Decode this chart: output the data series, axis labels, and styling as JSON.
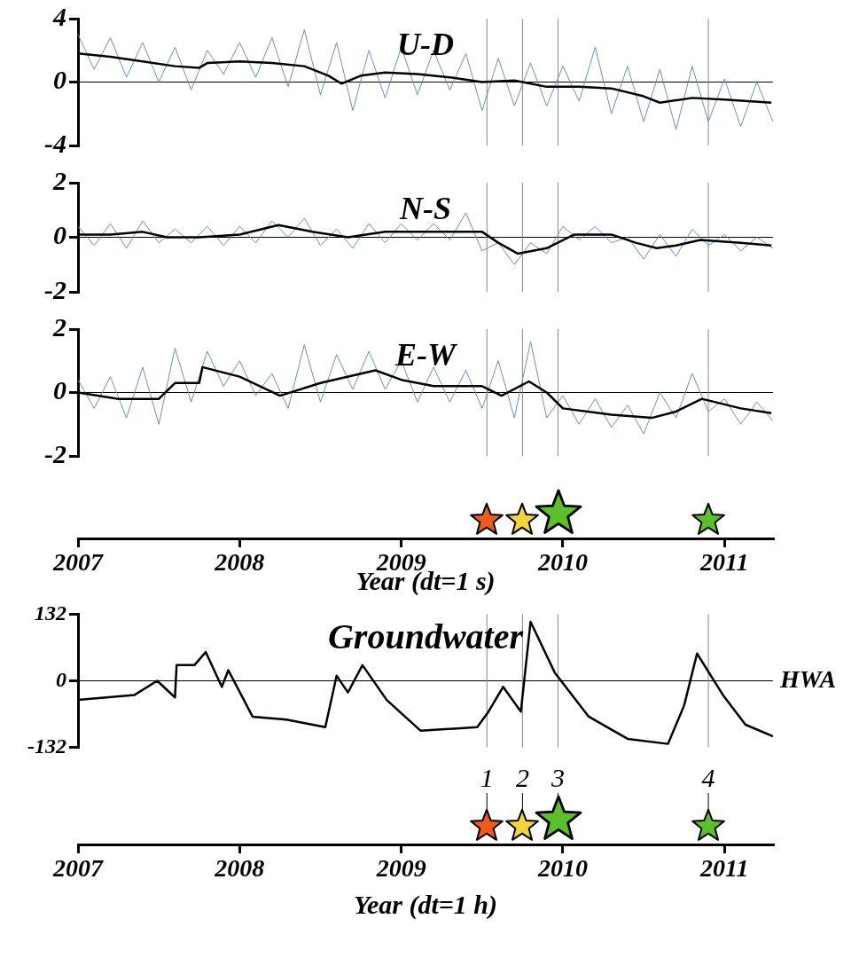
{
  "chart_data": [
    {
      "type": "line",
      "title": "U-D",
      "xlim": [
        2007,
        2011.3
      ],
      "ylim": [
        -4,
        4
      ],
      "yticks": [
        4,
        0,
        -4
      ],
      "tick_labels": "y",
      "grid": false,
      "legend": false,
      "marker": "none",
      "line_style": "solid",
      "series": [
        {
          "color": "#6b8fb8",
          "x": [
            2007.0,
            2007.1,
            2007.2,
            2007.3,
            2007.4,
            2007.5,
            2007.6,
            2007.7,
            2007.8,
            2007.9,
            2008.0,
            2008.1,
            2008.2,
            2008.3,
            2008.4,
            2008.5,
            2008.6,
            2008.7,
            2008.8,
            2008.9,
            2009.0,
            2009.1,
            2009.2,
            2009.3,
            2009.4,
            2009.5,
            2009.6,
            2009.7,
            2009.8,
            2009.9,
            2010.0,
            2010.1,
            2010.2,
            2010.3,
            2010.4,
            2010.5,
            2010.6,
            2010.7,
            2010.8,
            2010.9,
            2011.0,
            2011.1,
            2011.2,
            2011.3
          ],
          "values": [
            3.0,
            0.8,
            2.8,
            0.3,
            2.5,
            0.0,
            2.2,
            -0.5,
            2.0,
            0.5,
            2.5,
            0.3,
            2.8,
            -0.3,
            3.3,
            -0.8,
            2.5,
            -1.8,
            2.0,
            -1.0,
            2.2,
            -0.8,
            2.0,
            -0.5,
            1.8,
            -1.8,
            1.5,
            -1.5,
            1.2,
            -1.5,
            1.0,
            -1.2,
            2.2,
            -2.0,
            1.0,
            -2.5,
            0.8,
            -3.0,
            1.0,
            -2.5,
            0.2,
            -2.8,
            0.0,
            -2.5
          ]
        },
        {
          "color": "#000000",
          "x": [
            2007.0,
            2007.2,
            2007.4,
            2007.6,
            2007.75,
            2007.8,
            2008.0,
            2008.2,
            2008.4,
            2008.55,
            2008.63,
            2008.75,
            2008.9,
            2009.1,
            2009.3,
            2009.5,
            2009.7,
            2009.9,
            2010.1,
            2010.3,
            2010.5,
            2010.6,
            2010.8,
            2011.0,
            2011.29
          ],
          "values": [
            1.8,
            1.6,
            1.3,
            1.0,
            0.9,
            1.2,
            1.3,
            1.2,
            1.0,
            0.4,
            -0.1,
            0.4,
            0.6,
            0.5,
            0.3,
            0.0,
            0.1,
            -0.3,
            -0.3,
            -0.4,
            -0.9,
            -1.3,
            -1.0,
            -1.1,
            -1.3
          ]
        }
      ],
      "ref_lines": [
        {
          "axis": "y",
          "value": 0,
          "color": "#000000"
        },
        {
          "axis": "x",
          "value": 2009.53,
          "color": "#888888"
        },
        {
          "axis": "x",
          "value": 2009.75,
          "color": "#888888"
        },
        {
          "axis": "x",
          "value": 2009.97,
          "color": "#888888"
        },
        {
          "axis": "x",
          "value": 2010.9,
          "color": "#888888"
        }
      ]
    },
    {
      "type": "line",
      "title": "N-S",
      "xlim": [
        2007,
        2011.3
      ],
      "ylim": [
        -2,
        2
      ],
      "yticks": [
        2,
        0,
        -2
      ],
      "tick_labels": "y",
      "grid": false,
      "legend": false,
      "marker": "none",
      "line_style": "solid",
      "series": [
        {
          "color": "#6b8fb8",
          "x": [
            2007.0,
            2007.1,
            2007.2,
            2007.3,
            2007.4,
            2007.5,
            2007.6,
            2007.7,
            2007.8,
            2007.9,
            2008.0,
            2008.1,
            2008.2,
            2008.3,
            2008.4,
            2008.5,
            2008.6,
            2008.7,
            2008.8,
            2008.9,
            2009.0,
            2009.1,
            2009.2,
            2009.3,
            2009.4,
            2009.5,
            2009.6,
            2009.7,
            2009.8,
            2009.9,
            2010.0,
            2010.1,
            2010.2,
            2010.3,
            2010.4,
            2010.5,
            2010.6,
            2010.7,
            2010.8,
            2010.9,
            2011.0,
            2011.1,
            2011.2,
            2011.3
          ],
          "values": [
            0.4,
            -0.3,
            0.5,
            -0.4,
            0.6,
            -0.2,
            0.3,
            -0.2,
            0.4,
            -0.3,
            0.4,
            -0.2,
            0.6,
            0.0,
            0.7,
            -0.3,
            0.3,
            -0.4,
            0.5,
            -0.2,
            0.5,
            -0.1,
            0.5,
            -0.1,
            0.9,
            -0.5,
            -0.2,
            -1.0,
            -0.2,
            -0.6,
            0.4,
            -0.1,
            0.4,
            -0.2,
            0.0,
            -0.8,
            0.1,
            -0.7,
            0.3,
            -0.3,
            0.1,
            -0.5,
            0.0,
            -0.4
          ]
        },
        {
          "color": "#000000",
          "x": [
            2007.0,
            2007.2,
            2007.4,
            2007.55,
            2007.75,
            2008.0,
            2008.24,
            2008.45,
            2008.67,
            2008.9,
            2009.2,
            2009.5,
            2009.6,
            2009.72,
            2009.9,
            2010.07,
            2010.3,
            2010.45,
            2010.58,
            2010.7,
            2010.85,
            2011.1,
            2011.29
          ],
          "values": [
            0.1,
            0.1,
            0.2,
            0.0,
            0.0,
            0.1,
            0.45,
            0.2,
            0.0,
            0.2,
            0.2,
            0.2,
            -0.2,
            -0.6,
            -0.4,
            0.1,
            0.1,
            -0.2,
            -0.4,
            -0.3,
            -0.1,
            -0.2,
            -0.3
          ]
        }
      ],
      "ref_lines": [
        {
          "axis": "y",
          "value": 0,
          "color": "#000000"
        },
        {
          "axis": "x",
          "value": 2009.53,
          "color": "#888888"
        },
        {
          "axis": "x",
          "value": 2009.75,
          "color": "#888888"
        },
        {
          "axis": "x",
          "value": 2009.97,
          "color": "#888888"
        },
        {
          "axis": "x",
          "value": 2010.9,
          "color": "#888888"
        }
      ]
    },
    {
      "type": "line",
      "title": "E-W",
      "xlabel": "Year (dt=1 s)",
      "xlim": [
        2007,
        2011.3
      ],
      "xticks": [
        2007,
        2008,
        2009,
        2010,
        2011
      ],
      "ylim": [
        -2,
        2
      ],
      "yticks": [
        2,
        0,
        -2
      ],
      "grid": false,
      "legend": false,
      "marker": "none",
      "line_style": "solid",
      "series": [
        {
          "color": "#6b8fb8",
          "x": [
            2007.0,
            2007.1,
            2007.2,
            2007.3,
            2007.4,
            2007.5,
            2007.6,
            2007.7,
            2007.8,
            2007.9,
            2008.0,
            2008.1,
            2008.2,
            2008.3,
            2008.4,
            2008.5,
            2008.6,
            2008.7,
            2008.8,
            2008.9,
            2009.0,
            2009.1,
            2009.2,
            2009.3,
            2009.4,
            2009.5,
            2009.6,
            2009.7,
            2009.8,
            2009.9,
            2010.0,
            2010.1,
            2010.2,
            2010.3,
            2010.4,
            2010.5,
            2010.6,
            2010.7,
            2010.8,
            2010.9,
            2011.0,
            2011.1,
            2011.2,
            2011.3
          ],
          "values": [
            0.4,
            -0.5,
            0.5,
            -0.8,
            0.8,
            -1.0,
            1.4,
            -0.3,
            1.3,
            0.2,
            1.0,
            -0.1,
            0.6,
            -0.5,
            1.5,
            -0.3,
            1.2,
            0.1,
            1.3,
            0.1,
            1.0,
            -0.3,
            0.8,
            -0.3,
            0.7,
            -0.5,
            1.0,
            -0.8,
            1.6,
            -0.8,
            -0.1,
            -1.0,
            -0.2,
            -1.1,
            -0.4,
            -1.3,
            0.0,
            -0.8,
            0.6,
            -0.6,
            -0.2,
            -1.0,
            -0.3,
            -0.9
          ]
        },
        {
          "color": "#000000",
          "x": [
            2007.0,
            2007.25,
            2007.5,
            2007.6,
            2007.75,
            2007.77,
            2008.0,
            2008.25,
            2008.5,
            2008.84,
            2009.0,
            2009.2,
            2009.5,
            2009.62,
            2009.79,
            2009.9,
            2010.0,
            2010.3,
            2010.55,
            2010.7,
            2010.86,
            2011.1,
            2011.29
          ],
          "values": [
            0.0,
            -0.2,
            -0.2,
            0.3,
            0.3,
            0.8,
            0.5,
            -0.1,
            0.3,
            0.7,
            0.4,
            0.2,
            0.2,
            -0.1,
            0.35,
            0.0,
            -0.5,
            -0.7,
            -0.8,
            -0.6,
            -0.2,
            -0.5,
            -0.65
          ]
        }
      ],
      "ref_lines": [
        {
          "axis": "y",
          "value": 0,
          "color": "#000000"
        },
        {
          "axis": "x",
          "value": 2009.53,
          "color": "#888888"
        },
        {
          "axis": "x",
          "value": 2009.75,
          "color": "#888888"
        },
        {
          "axis": "x",
          "value": 2009.97,
          "color": "#888888"
        },
        {
          "axis": "x",
          "value": 2010.9,
          "color": "#888888"
        }
      ]
    },
    {
      "type": "line",
      "title": "Groundwater",
      "xlabel": "Year (dt=1 h)",
      "xlim": [
        2007,
        2011.3
      ],
      "xticks": [
        2007,
        2008,
        2009,
        2010,
        2011
      ],
      "ylim": [
        -132,
        132
      ],
      "yticks": [
        132,
        0,
        -132
      ],
      "grid": false,
      "legend": false,
      "marker": "none",
      "line_style": "solid",
      "series": [
        {
          "color": "#000000",
          "x": [
            2007.0,
            2007.35,
            2007.49,
            2007.6,
            2007.61,
            2007.72,
            2007.79,
            2007.89,
            2007.93,
            2008.08,
            2008.29,
            2008.53,
            2008.6,
            2008.67,
            2008.76,
            2008.91,
            2009.12,
            2009.47,
            2009.54,
            2009.63,
            2009.74,
            2009.8,
            2009.95,
            2010.16,
            2010.4,
            2010.65,
            2010.75,
            2010.83,
            2010.99,
            2011.13,
            2011.3
          ],
          "values": [
            -38,
            -28,
            0,
            -33,
            31,
            31,
            57,
            -12,
            21,
            -71,
            -77,
            -92,
            10,
            -23,
            31,
            -38,
            -99,
            -92,
            -61,
            -12,
            -61,
            117,
            16,
            -71,
            -115,
            -125,
            -49,
            54,
            -28,
            -87,
            -110
          ]
        }
      ],
      "annotations": [
        "1",
        "2",
        "3",
        "4"
      ],
      "ref_lines": [
        {
          "axis": "y",
          "value": 0,
          "label": "HWA",
          "color": "#000000"
        },
        {
          "axis": "x",
          "value": 2009.53,
          "color": "#888888"
        },
        {
          "axis": "x",
          "value": 2009.75,
          "color": "#888888"
        },
        {
          "axis": "x",
          "value": 2009.97,
          "color": "#888888"
        },
        {
          "axis": "x",
          "value": 2010.9,
          "color": "#888888"
        }
      ]
    }
  ]
}
